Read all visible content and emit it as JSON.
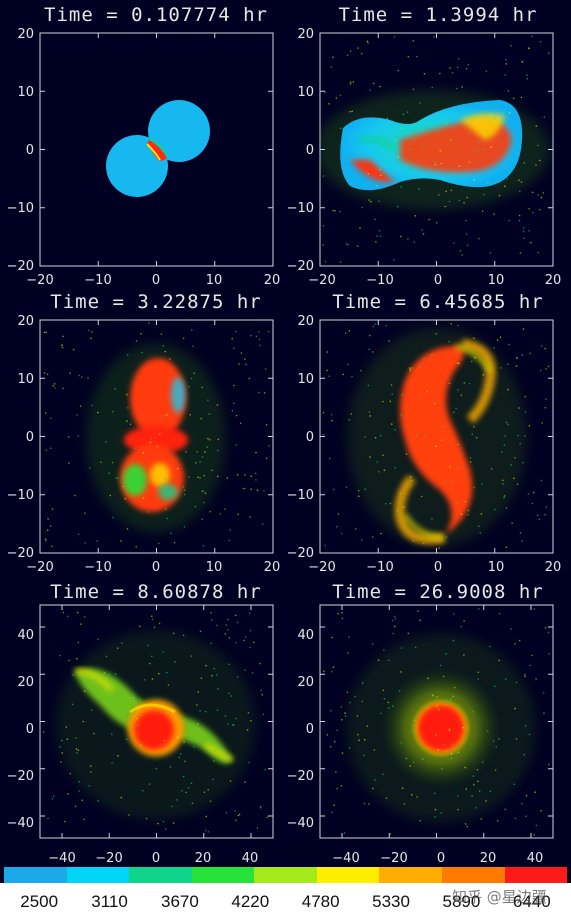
{
  "panels": [
    {
      "title": "Time = 0.107774 hr",
      "xticks": [
        "−20",
        "−10",
        "0",
        "10",
        "20"
      ],
      "yticks": [
        "20",
        "10",
        "0",
        "−10",
        "−20"
      ]
    },
    {
      "title": "Time = 1.3994 hr",
      "xticks": [
        "−20",
        "−10",
        "0",
        "10",
        "20"
      ],
      "yticks": [
        "20",
        "10",
        "0",
        "−10",
        "−20"
      ]
    },
    {
      "title": "Time = 3.22875 hr",
      "xticks": [
        "−20",
        "−10",
        "0",
        "10",
        "20"
      ],
      "yticks": [
        "20",
        "10",
        "0",
        "−10",
        "−20"
      ]
    },
    {
      "title": "Time = 6.45685 hr",
      "xticks": [
        "−20",
        "−10",
        "0",
        "10",
        "20"
      ],
      "yticks": [
        "20",
        "10",
        "0",
        "−10",
        "−20"
      ]
    },
    {
      "title": "Time = 8.60878 hr",
      "xticks": [
        "−40",
        "−20",
        "0",
        "20",
        "40"
      ],
      "yticks": [
        "40",
        "20",
        "0",
        "−20",
        "−40"
      ]
    },
    {
      "title": "Time = 26.9008 hr",
      "xticks": [
        "−40",
        "−20",
        "0",
        "20",
        "40"
      ],
      "yticks": [
        "40",
        "20",
        "0",
        "−20",
        "−40"
      ]
    }
  ],
  "colorbar": {
    "colors": [
      "#1ba9ea",
      "#00d5f5",
      "#0fd48a",
      "#27e23b",
      "#a4ea1a",
      "#ffee00",
      "#ffae00",
      "#ff7a00",
      "#ff1a1a"
    ],
    "labels": [
      "2500",
      "3110",
      "3670",
      "4220",
      "4780",
      "5330",
      "5890",
      "6440"
    ]
  },
  "watermark": "知乎 @星边疆"
}
